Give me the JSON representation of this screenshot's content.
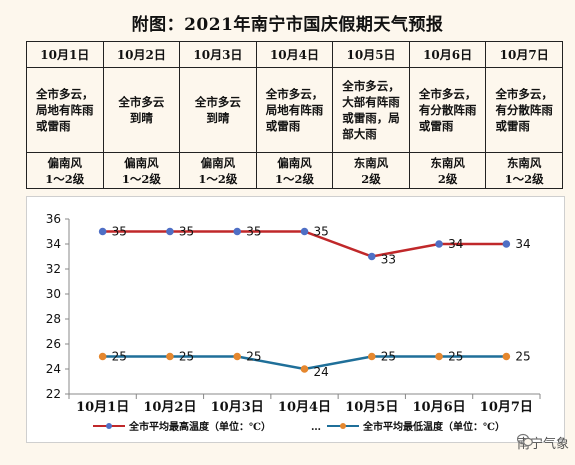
{
  "title": "附图：2021年南宁市国庆假期天气预报",
  "days": [
    {
      "date": "10月1日",
      "weather": [
        "全市多云，",
        "局地有阵雨",
        "或雷雨"
      ],
      "wind": [
        "偏南风",
        "1～2级"
      ]
    },
    {
      "date": "10月2日",
      "weather": [
        "全市多云",
        "到晴"
      ],
      "wind": [
        "偏南风",
        "1～2级"
      ]
    },
    {
      "date": "10月3日",
      "weather": [
        "全市多云",
        "到晴"
      ],
      "wind": [
        "偏南风",
        "1～2级"
      ]
    },
    {
      "date": "10月4日",
      "weather": [
        "全市多云，",
        "局地有阵雨",
        "或雷雨"
      ],
      "wind": [
        "偏南风",
        "1～2级"
      ]
    },
    {
      "date": "10月5日",
      "weather": [
        "全市多云，",
        "大部有阵雨",
        "或雷雨，局",
        "部大雨"
      ],
      "wind": [
        "东南风",
        "2级"
      ]
    },
    {
      "date": "10月6日",
      "weather": [
        "全市多云，",
        "有分散阵雨",
        "或雷雨"
      ],
      "wind": [
        "东南风",
        "2级"
      ]
    },
    {
      "date": "10月7日",
      "weather": [
        "全市多云，",
        "有分散阵雨",
        "或雷雨"
      ],
      "wind": [
        "东南风",
        "1～2级"
      ]
    }
  ],
  "chart_data": {
    "type": "line",
    "categories": [
      "10月1日",
      "10月2日",
      "10月3日",
      "10月4日",
      "10月5日",
      "10月6日",
      "10月7日"
    ],
    "series": [
      {
        "name": "全市平均最高温度（单位：℃）",
        "values": [
          35,
          35,
          35,
          35,
          33,
          34,
          34
        ],
        "color": "#c0282a"
      },
      {
        "name": "全市平均最低温度（单位：℃）",
        "values": [
          25,
          25,
          25,
          24,
          25,
          25,
          25
        ],
        "color": "#1f6f99"
      }
    ],
    "marker_colors": {
      "high": "#4f6fc5",
      "low": "#e5872e"
    },
    "ylim": [
      22,
      36
    ],
    "yticks": [
      22,
      24,
      26,
      28,
      30,
      32,
      34,
      36
    ],
    "grid": false,
    "legend": "bottom",
    "legend_separator": "…"
  },
  "watermark": "南宁气象"
}
